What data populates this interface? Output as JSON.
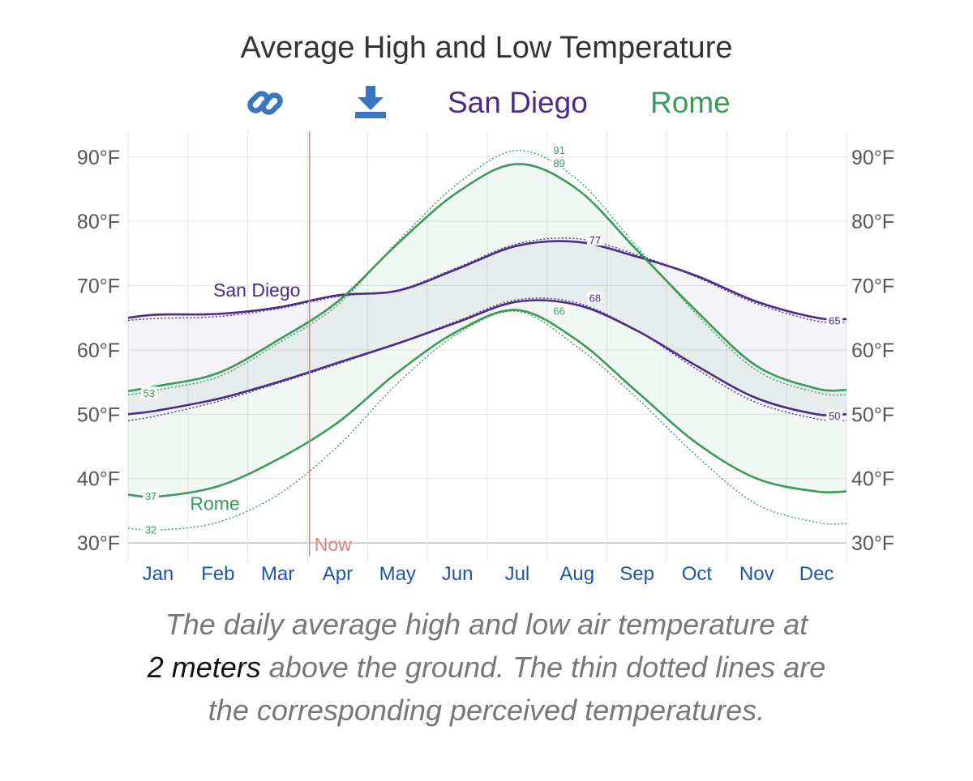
{
  "title": "Average High and Low Temperature",
  "toolbar": {
    "link_icon": "link-icon",
    "download_icon": "download-icon"
  },
  "legend": [
    {
      "name": "San Diego",
      "color": "#4b2b86"
    },
    {
      "name": "Rome",
      "color": "#3a9a5c"
    }
  ],
  "caption": {
    "line1": "The daily average high and low air temperature at",
    "emphasis": "2 meters",
    "line2_rest": " above the ground. The thin dotted lines are",
    "line3": "the corresponding perceived temperatures."
  },
  "chart_data": {
    "type": "line",
    "title": "Average High and Low Temperature",
    "xlabel": "",
    "ylabel": "",
    "x_labels": [
      "Jan",
      "Feb",
      "Mar",
      "Apr",
      "May",
      "Jun",
      "Jul",
      "Aug",
      "Sep",
      "Oct",
      "Nov",
      "Dec"
    ],
    "x_range": [
      0,
      12
    ],
    "ylim": [
      28,
      94
    ],
    "y_ticks": [
      30,
      40,
      50,
      60,
      70,
      80,
      90
    ],
    "y_tick_labels": [
      "30°F",
      "40°F",
      "50°F",
      "60°F",
      "70°F",
      "80°F",
      "90°F"
    ],
    "grid": true,
    "now_label": "Now",
    "now_x": 3.03,
    "colors": {
      "San Diego": "#4b2b86",
      "Rome": "#3a9a5c",
      "now": "#e08080",
      "axis_label": "#1f55a8"
    },
    "x": [
      0,
      0.5,
      1.5,
      2.5,
      3.5,
      4.5,
      5.5,
      6.5,
      7.5,
      8.5,
      9.5,
      10.5,
      11.5,
      12
    ],
    "series": [
      {
        "name": "San Diego high",
        "city": "San Diego",
        "kind": "high",
        "values": [
          65,
          65.5,
          65.6,
          66.6,
          68.5,
          69.2,
          72.6,
          76.2,
          76.8,
          74.5,
          71.5,
          67.5,
          65,
          64.8
        ]
      },
      {
        "name": "San Diego low",
        "city": "San Diego",
        "kind": "low",
        "values": [
          50,
          50.6,
          52.4,
          55,
          58,
          61,
          64.3,
          67.5,
          67,
          63,
          57.5,
          52.5,
          50,
          50
        ]
      },
      {
        "name": "Rome high",
        "city": "Rome",
        "kind": "high",
        "values": [
          53.6,
          54.4,
          56.4,
          61.5,
          67.5,
          76.5,
          84.5,
          88.9,
          85,
          75.5,
          66,
          57.5,
          54,
          53.8
        ]
      },
      {
        "name": "Rome low",
        "city": "Rome",
        "kind": "low",
        "values": [
          37.5,
          37.2,
          38.8,
          43,
          48.7,
          56.5,
          62.9,
          66.2,
          61.5,
          53.5,
          45.5,
          40,
          38,
          38
        ]
      },
      {
        "name": "San Diego high perceived",
        "city": "San Diego",
        "kind": "perceived",
        "values": [
          64.6,
          64.9,
          65.2,
          66.4,
          68.3,
          69.3,
          72.8,
          76.5,
          77.3,
          74.8,
          71.3,
          67.2,
          64.5,
          64.3
        ]
      },
      {
        "name": "San Diego low perceived",
        "city": "San Diego",
        "kind": "perceived",
        "values": [
          49,
          49.8,
          52,
          54.8,
          57.8,
          61,
          64.5,
          67.8,
          67.3,
          63,
          57,
          51.8,
          49.3,
          49
        ]
      },
      {
        "name": "Rome high perceived",
        "city": "Rome",
        "kind": "perceived",
        "values": [
          53,
          53.8,
          55.8,
          61,
          67,
          76.8,
          85.8,
          91,
          86.5,
          76,
          65.5,
          56.8,
          53.4,
          53
        ]
      },
      {
        "name": "Rome low perceived",
        "city": "Rome",
        "kind": "perceived",
        "values": [
          32.3,
          32,
          33.2,
          37.5,
          45,
          54.8,
          62.5,
          66,
          60.5,
          52.5,
          43.5,
          36,
          33.2,
          33
        ]
      }
    ],
    "series_labels": [
      {
        "text": "San Diego",
        "city": "San Diego",
        "x": 2.15,
        "y": 69.3
      },
      {
        "text": "Rome",
        "city": "Rome",
        "x": 1.45,
        "y": 36.1
      }
    ],
    "data_labels": [
      {
        "text": "53",
        "city": "Rome",
        "x": 0.35,
        "y": 53.3
      },
      {
        "text": "37",
        "city": "Rome",
        "x": 0.38,
        "y": 37.3
      },
      {
        "text": "32",
        "city": "Rome",
        "x": 0.38,
        "y": 32.1
      },
      {
        "text": "91",
        "city": "Rome",
        "x": 7.2,
        "y": 91.1
      },
      {
        "text": "89",
        "city": "Rome",
        "x": 7.2,
        "y": 89.1
      },
      {
        "text": "77",
        "city": "San Diego",
        "x": 7.8,
        "y": 77.1
      },
      {
        "text": "68",
        "city": "San Diego",
        "x": 7.8,
        "y": 68.1
      },
      {
        "text": "66",
        "city": "Rome",
        "x": 7.2,
        "y": 66.1
      },
      {
        "text": "65",
        "city": "San Diego",
        "x": 11.8,
        "y": 64.6
      },
      {
        "text": "50",
        "city": "San Diego",
        "x": 11.8,
        "y": 49.8
      }
    ]
  }
}
